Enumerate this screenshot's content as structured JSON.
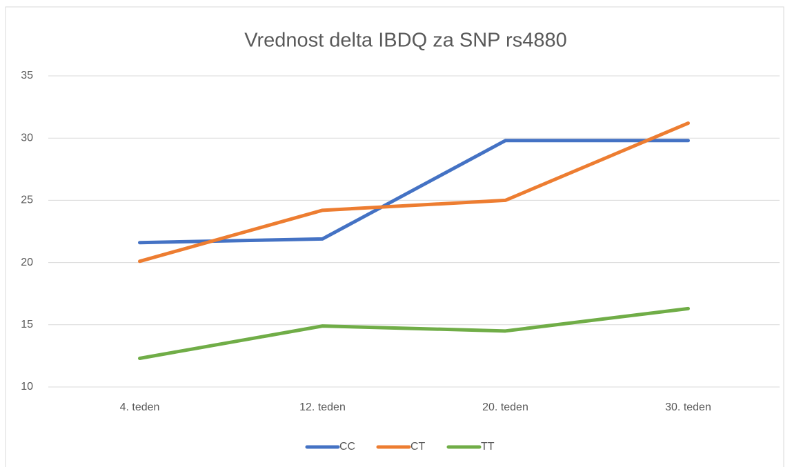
{
  "chart_data": {
    "type": "line",
    "title": "Vrednost delta IBDQ za SNP rs4880",
    "categories": [
      "4. teden",
      "12. teden",
      "20. teden",
      "30. teden"
    ],
    "series": [
      {
        "name": "CC",
        "color": "#4472c4",
        "values": [
          21.6,
          21.9,
          29.8,
          29.8
        ]
      },
      {
        "name": "CT",
        "color": "#ed7d31",
        "values": [
          20.1,
          24.2,
          25.0,
          31.2
        ]
      },
      {
        "name": "TT",
        "color": "#70ad47",
        "values": [
          12.3,
          14.9,
          14.5,
          16.3
        ]
      }
    ],
    "ylim": [
      10,
      35
    ],
    "yticks": [
      10,
      15,
      20,
      25,
      30,
      35
    ],
    "grid": true,
    "legend": "bottom"
  }
}
